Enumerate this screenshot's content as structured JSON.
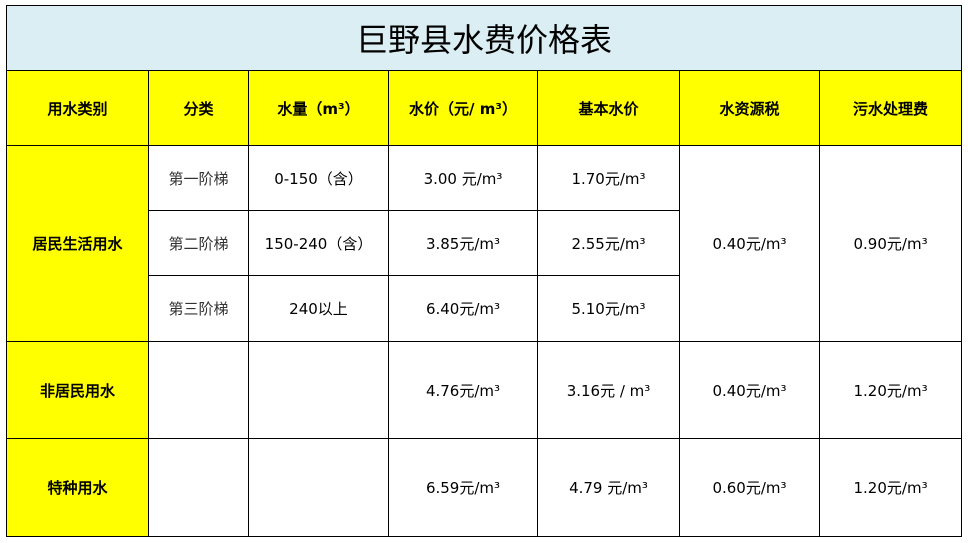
{
  "title": "巨野县水费价格表",
  "headers": [
    "用水类别",
    "分类",
    "水量（m³）",
    "水价（元/ m³）",
    "基本水价",
    "水资源税",
    "污水处理费"
  ],
  "residential": {
    "category": "居民生活用水",
    "water_resource_tax": "0.40元/m³",
    "sewage_fee": "0.90元/m³",
    "tiers": [
      {
        "tier": "第一阶梯",
        "volume": "0-150（含）",
        "price": "3.00 元/m³",
        "base_price": "1.70元/m³"
      },
      {
        "tier": "第二阶梯",
        "volume": "150-240（含）",
        "price": "3.85元/m³",
        "base_price": "2.55元/m³"
      },
      {
        "tier": "第三阶梯",
        "volume": "240以上",
        "price": "6.40元/m³",
        "base_price": "5.10元/m³"
      }
    ]
  },
  "rows": [
    {
      "category": "非居民用水",
      "tier": "",
      "volume": "",
      "price": "4.76元/m³",
      "base_price": "3.16元 / m³",
      "water_resource_tax": "0.40元/m³",
      "sewage_fee": "1.20元/m³"
    },
    {
      "category": "特种用水",
      "tier": "",
      "volume": "",
      "price": "6.59元/m³",
      "base_price": "4.79 元/m³",
      "water_resource_tax": "0.60元/m³",
      "sewage_fee": "1.20元/m³"
    }
  ],
  "colors": {
    "title_bg": "#daeef3",
    "header_bg": "#ffff00"
  }
}
